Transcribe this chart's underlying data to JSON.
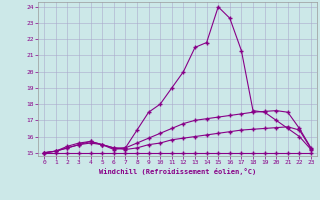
{
  "xlabel": "Windchill (Refroidissement éolien,°C)",
  "bg_color": "#cce8e8",
  "grid_color": "#aaaacc",
  "line_color": "#880088",
  "xlim": [
    -0.5,
    23.5
  ],
  "ylim": [
    14.8,
    24.3
  ],
  "xticks": [
    0,
    1,
    2,
    3,
    4,
    5,
    6,
    7,
    8,
    9,
    10,
    11,
    12,
    13,
    14,
    15,
    16,
    17,
    18,
    19,
    20,
    21,
    22,
    23
  ],
  "yticks": [
    15,
    16,
    17,
    18,
    19,
    20,
    21,
    22,
    23,
    24
  ],
  "line1_x": [
    0,
    1,
    2,
    3,
    4,
    5,
    6,
    7,
    8,
    9,
    10,
    11,
    12,
    13,
    14,
    15,
    16,
    17,
    18,
    19,
    20,
    21,
    22,
    23
  ],
  "line1_y": [
    15.0,
    15.0,
    15.0,
    15.0,
    15.0,
    15.0,
    15.0,
    15.0,
    15.0,
    15.0,
    15.0,
    15.0,
    15.0,
    15.0,
    15.0,
    15.0,
    15.0,
    15.0,
    15.0,
    15.0,
    15.0,
    15.0,
    15.0,
    15.0
  ],
  "line2_x": [
    0,
    1,
    2,
    3,
    4,
    5,
    6,
    7,
    8,
    9,
    10,
    11,
    12,
    13,
    14,
    15,
    16,
    17,
    18,
    19,
    20,
    21,
    22,
    23
  ],
  "line2_y": [
    15.0,
    15.1,
    15.3,
    15.5,
    15.6,
    15.5,
    15.3,
    15.2,
    15.3,
    15.5,
    15.6,
    15.8,
    15.9,
    16.0,
    16.1,
    16.2,
    16.3,
    16.4,
    16.45,
    16.5,
    16.55,
    16.6,
    16.4,
    15.25
  ],
  "line3_x": [
    0,
    1,
    2,
    3,
    4,
    5,
    6,
    7,
    8,
    9,
    10,
    11,
    12,
    13,
    14,
    15,
    16,
    17,
    18,
    19,
    20,
    21,
    22,
    23
  ],
  "line3_y": [
    15.0,
    15.1,
    15.4,
    15.6,
    15.7,
    15.5,
    15.3,
    15.3,
    15.6,
    15.9,
    16.2,
    16.5,
    16.8,
    17.0,
    17.1,
    17.2,
    17.3,
    17.4,
    17.5,
    17.55,
    17.6,
    17.5,
    16.5,
    15.3
  ],
  "line4_x": [
    0,
    1,
    2,
    3,
    4,
    5,
    6,
    7,
    8,
    9,
    10,
    11,
    12,
    13,
    14,
    15,
    16,
    17,
    18,
    19,
    20,
    21,
    22,
    23
  ],
  "line4_y": [
    15.0,
    15.1,
    15.3,
    15.5,
    15.7,
    15.5,
    15.2,
    15.3,
    16.4,
    17.5,
    18.0,
    19.0,
    20.0,
    21.5,
    21.8,
    24.0,
    23.3,
    21.3,
    17.6,
    17.5,
    17.0,
    16.5,
    16.0,
    15.2
  ],
  "marker": "+",
  "markersize": 3,
  "linewidth": 0.8
}
